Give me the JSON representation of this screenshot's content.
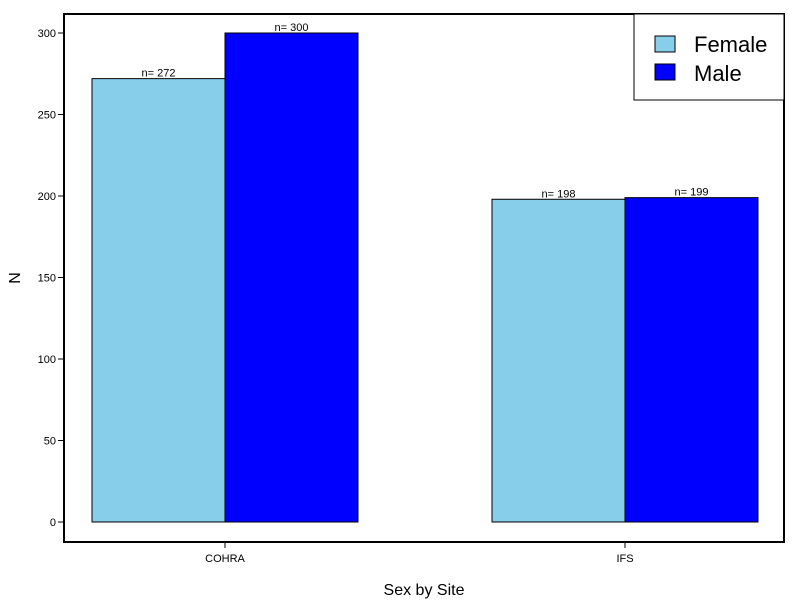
{
  "chart_data": {
    "type": "bar",
    "categories": [
      "COHRA",
      "IFS"
    ],
    "series": [
      {
        "name": "Female",
        "values": [
          272,
          198
        ],
        "color": "#87CEEB"
      },
      {
        "name": "Male",
        "values": [
          300,
          199
        ],
        "color": "#0000FF"
      }
    ],
    "data_labels": [
      [
        "n= 272",
        "n= 198"
      ],
      [
        "n= 300",
        "n= 199"
      ]
    ],
    "title": "",
    "xlabel": "Sex by Site",
    "ylabel": "N",
    "ylim": [
      0,
      300
    ],
    "yticks": [
      0,
      50,
      100,
      150,
      200,
      250,
      300
    ],
    "grid": false,
    "legend_position": "top-right"
  }
}
